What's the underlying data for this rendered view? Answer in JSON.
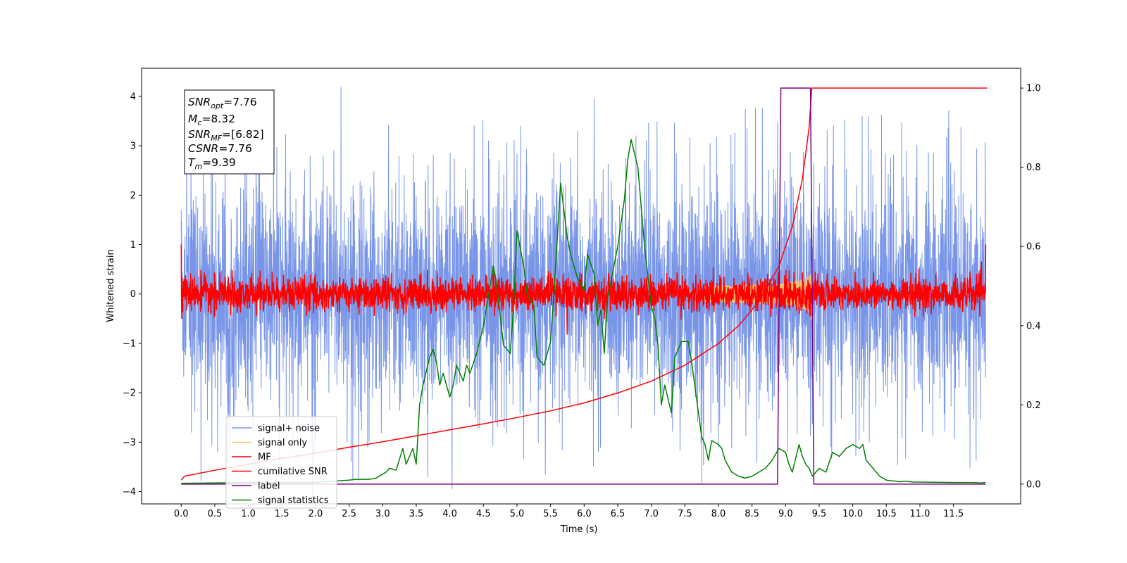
{
  "chart_data": {
    "type": "line",
    "xlabel": "Time (s)",
    "ylabel_left": "Whitened strain",
    "ylabel_right": "",
    "xlim": [
      -0.59,
      12.5
    ],
    "ylim_left": [
      -4.25,
      4.57
    ],
    "ylim_right": [
      -0.05,
      1.05
    ],
    "x_ticks": [
      "0.0",
      "0.5",
      "1.0",
      "1.5",
      "2.0",
      "2.5",
      "3.0",
      "3.5",
      "4.0",
      "4.5",
      "5.0",
      "5.5",
      "6.0",
      "6.5",
      "7.0",
      "7.5",
      "8.0",
      "8.5",
      "9.0",
      "9.5",
      "10.0",
      "10.5",
      "11.0",
      "11.5"
    ],
    "x_tick_values": [
      0,
      0.5,
      1,
      1.5,
      2,
      2.5,
      3,
      3.5,
      4,
      4.5,
      5,
      5.5,
      6,
      6.5,
      7,
      7.5,
      8,
      8.5,
      9,
      9.5,
      10,
      10.5,
      11,
      11.5
    ],
    "y_ticks_left": [
      "−4",
      "−3",
      "−2",
      "−1",
      "0",
      "1",
      "2",
      "3",
      "4"
    ],
    "y_tick_values_left": [
      -4,
      -3,
      -2,
      -1,
      0,
      1,
      2,
      3,
      4
    ],
    "y_ticks_right": [
      "0.0",
      "0.2",
      "0.4",
      "0.6",
      "0.8",
      "1.0"
    ],
    "y_tick_values_right": [
      0,
      0.2,
      0.4,
      0.6,
      0.8,
      1.0
    ],
    "info_box": {
      "snr_opt": {
        "base": "SNR",
        "sub": "opt",
        "value": "=7.76"
      },
      "mc": {
        "base": "M",
        "sub": "c",
        "value": "=8.32"
      },
      "snr_mf": {
        "base": "SNR",
        "sub": "MF",
        "value": "=[6.82]"
      },
      "csnr": {
        "base": "CSNR",
        "sub": "",
        "value": "=7.76"
      },
      "tm": {
        "base": "T",
        "sub": "m",
        "value": "=9.39"
      }
    },
    "series": [
      {
        "name": "signal+ noise",
        "color": "#7895e8",
        "axis": "left",
        "kind": "noise",
        "x_range": [
          0,
          11.98
        ],
        "amplitude": 1.05,
        "peaks": [
          [
            2.38,
            4.18
          ],
          [
            0.0,
            1.7
          ],
          [
            6.15,
            3.95
          ],
          [
            0.15,
            -2.8
          ],
          [
            7.75,
            -3.82
          ]
        ]
      },
      {
        "name": "signal only",
        "color": "#f7c26b",
        "axis": "left",
        "kind": "chirp",
        "x_range": [
          7.6,
          9.39
        ],
        "envelope_end": 1.3
      },
      {
        "name": "MF",
        "color": "#ff0000",
        "axis": "left",
        "kind": "noise",
        "x_range": [
          0,
          11.98
        ],
        "amplitude": 0.17,
        "peaks": [
          [
            0.0,
            1.0
          ],
          [
            11.98,
            1.0
          ]
        ]
      },
      {
        "name": "cumilative SNR",
        "color": "#ff0000",
        "axis": "right",
        "x": [
          0,
          0.05,
          0.5,
          1,
          1.5,
          2,
          2.5,
          3,
          3.5,
          4,
          4.5,
          5,
          5.5,
          6,
          6.5,
          7,
          7.5,
          8,
          8.3,
          8.6,
          8.9,
          9.1,
          9.25,
          9.35,
          9.39,
          12.0
        ],
        "values": [
          0.01,
          0.02,
          0.035,
          0.05,
          0.065,
          0.078,
          0.093,
          0.107,
          0.122,
          0.137,
          0.152,
          0.168,
          0.185,
          0.205,
          0.23,
          0.26,
          0.3,
          0.355,
          0.4,
          0.46,
          0.55,
          0.65,
          0.77,
          0.9,
          1.0,
          1.0
        ]
      },
      {
        "name": "label",
        "color": "#800080",
        "axis": "right",
        "x": [
          0,
          8.88,
          8.93,
          9.37,
          9.42,
          11.98
        ],
        "values": [
          0,
          0,
          1,
          1,
          0,
          0
        ]
      },
      {
        "name": "signal statistics",
        "color": "#008000",
        "axis": "right",
        "x": [
          0,
          0.5,
          1,
          1.5,
          2,
          2.5,
          2.6,
          2.8,
          2.9,
          3.0,
          3.05,
          3.1,
          3.2,
          3.3,
          3.35,
          3.4,
          3.45,
          3.5,
          3.55,
          3.6,
          3.7,
          3.75,
          3.8,
          3.85,
          3.9,
          4.0,
          4.05,
          4.1,
          4.2,
          4.25,
          4.3,
          4.4,
          4.5,
          4.6,
          4.65,
          4.7,
          4.8,
          4.9,
          4.95,
          5.0,
          5.1,
          5.15,
          5.25,
          5.3,
          5.4,
          5.45,
          5.5,
          5.55,
          5.65,
          5.75,
          5.8,
          5.9,
          6.0,
          6.05,
          6.15,
          6.2,
          6.25,
          6.3,
          6.35,
          6.5,
          6.6,
          6.65,
          6.7,
          6.8,
          6.9,
          7.0,
          7.05,
          7.1,
          7.15,
          7.2,
          7.3,
          7.35,
          7.45,
          7.55,
          7.6,
          7.75,
          7.8,
          7.85,
          7.9,
          8.0,
          8.05,
          8.1,
          8.2,
          8.3,
          8.4,
          8.5,
          8.55,
          8.6,
          8.7,
          8.8,
          8.9,
          9.0,
          9.05,
          9.1,
          9.2,
          9.25,
          9.3,
          9.35,
          9.4,
          9.5,
          9.6,
          9.7,
          9.8,
          9.9,
          10.0,
          10.1,
          10.15,
          10.2,
          10.3,
          10.4,
          10.5,
          10.6,
          10.7,
          10.8,
          10.9,
          11.0,
          11.5,
          11.8,
          11.9,
          11.98
        ],
        "values": [
          0.002,
          0.003,
          0.004,
          0.004,
          0.004,
          0.01,
          0.012,
          0.012,
          0.015,
          0.025,
          0.03,
          0.04,
          0.035,
          0.09,
          0.05,
          0.07,
          0.09,
          0.05,
          0.2,
          0.25,
          0.32,
          0.34,
          0.31,
          0.25,
          0.28,
          0.22,
          0.25,
          0.3,
          0.26,
          0.3,
          0.28,
          0.33,
          0.4,
          0.5,
          0.55,
          0.5,
          0.35,
          0.33,
          0.45,
          0.64,
          0.55,
          0.48,
          0.45,
          0.32,
          0.3,
          0.33,
          0.36,
          0.48,
          0.76,
          0.62,
          0.58,
          0.52,
          0.49,
          0.58,
          0.53,
          0.4,
          0.44,
          0.33,
          0.47,
          0.6,
          0.72,
          0.82,
          0.87,
          0.8,
          0.6,
          0.45,
          0.42,
          0.35,
          0.2,
          0.25,
          0.18,
          0.32,
          0.36,
          0.36,
          0.31,
          0.12,
          0.1,
          0.06,
          0.11,
          0.1,
          0.09,
          0.06,
          0.03,
          0.02,
          0.015,
          0.02,
          0.025,
          0.03,
          0.04,
          0.06,
          0.09,
          0.08,
          0.05,
          0.03,
          0.1,
          0.07,
          0.05,
          0.04,
          0.02,
          0.04,
          0.03,
          0.08,
          0.07,
          0.09,
          0.1,
          0.09,
          0.1,
          0.06,
          0.04,
          0.02,
          0.01,
          0.008,
          0.006,
          0.007,
          0.005,
          0.005,
          0.004,
          0.004,
          0.003,
          0.004
        ]
      }
    ],
    "legend_position": "lower-left"
  }
}
